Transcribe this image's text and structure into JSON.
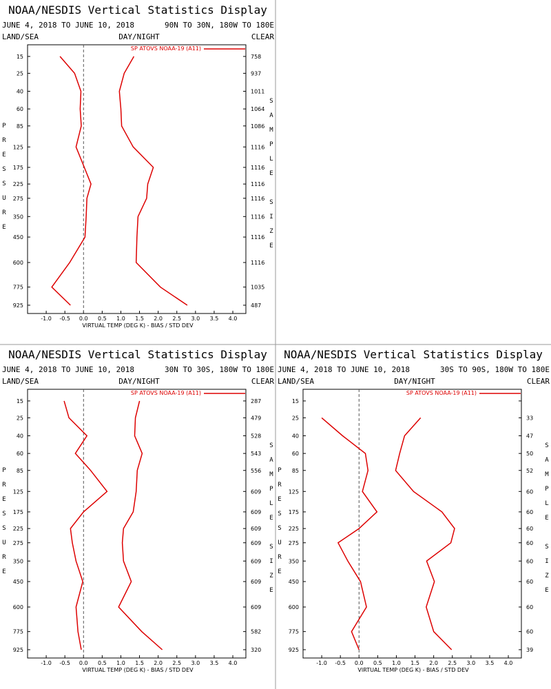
{
  "chart_data": [
    {
      "type": "line",
      "title": "NOAA/NESDIS Vertical Statistics Display",
      "date_range": "JUNE 4, 2018 TO JUNE 10, 2018",
      "region": "90N TO 30N, 180W TO 180E",
      "left_label": "LAND/SEA",
      "center_label": "DAY/NIGHT",
      "right_label": "CLEAR",
      "y_label": "PRESSURE",
      "y2_label": "SAMPLE SIZE",
      "x_label": "VIRTUAL TEMP (DEG K) - BIAS / STD DEV",
      "y": [
        15,
        25,
        40,
        60,
        85,
        125,
        175,
        225,
        275,
        350,
        450,
        600,
        775,
        925
      ],
      "ylim": [
        10,
        1000
      ],
      "yticks": [
        15,
        25,
        40,
        60,
        85,
        125,
        175,
        225,
        275,
        350,
        450,
        600,
        775,
        925
      ],
      "xlim": [
        -1.5,
        4.35
      ],
      "xticks": [
        {
          "value": -1,
          "label": "-1.0"
        },
        -0.5,
        {
          "value": 0,
          "label": "0.0"
        },
        0.5,
        {
          "value": 1,
          "label": "1.0"
        },
        1.5,
        {
          "value": 2,
          "label": "2.0"
        },
        2.5,
        {
          "value": 3,
          "label": "3.0"
        },
        3.5,
        {
          "value": 4,
          "label": "4.0"
        }
      ],
      "sample_size": [
        758,
        937,
        1011,
        1064,
        1086,
        1116,
        1116,
        1116,
        1116,
        1116,
        1116,
        1116,
        1035,
        487
      ],
      "series": [
        {
          "name": "SP ATOVS NOAA-19 (A11)",
          "color": "#dd0000",
          "values": [
            -0.63,
            -0.24,
            -0.07,
            -0.09,
            -0.06,
            -0.2,
            0.02,
            0.2,
            0.09,
            0.07,
            0.04,
            -0.37,
            -0.85,
            -0.35
          ],
          "std_dev": [
            1.35,
            1.09,
            0.96,
            1.0,
            1.02,
            1.33,
            1.87,
            1.72,
            1.69,
            1.46,
            1.43,
            1.41,
            2.06,
            2.78
          ]
        }
      ]
    },
    {
      "type": "line",
      "title": "NOAA/NESDIS Vertical Statistics Display",
      "date_range": "JUNE 4, 2018 TO JUNE 10, 2018",
      "region": "30N TO 30S, 180W TO 180E",
      "left_label": "LAND/SEA",
      "center_label": "DAY/NIGHT",
      "right_label": "CLEAR",
      "y_label": "PRESSURE",
      "y2_label": "SAMPLE SIZE",
      "x_label": "VIRTUAL TEMP (DEG K) - BIAS / STD DEV",
      "y": [
        15,
        25,
        40,
        60,
        85,
        125,
        175,
        225,
        275,
        350,
        450,
        600,
        775,
        925
      ],
      "ylim": [
        10,
        1000
      ],
      "yticks": [
        15,
        25,
        40,
        60,
        85,
        125,
        175,
        225,
        275,
        350,
        450,
        600,
        775,
        925
      ],
      "xlim": [
        -1.5,
        4.35
      ],
      "xticks": [
        {
          "value": -1,
          "label": "-1.0"
        },
        -0.5,
        {
          "value": 0,
          "label": "0.0"
        },
        0.5,
        {
          "value": 1,
          "label": "1.0"
        },
        1.5,
        {
          "value": 2,
          "label": "2.0"
        },
        2.5,
        {
          "value": 3,
          "label": "3.0"
        },
        3.5,
        {
          "value": 4,
          "label": "4.0"
        }
      ],
      "sample_size": [
        287,
        479,
        528,
        543,
        556,
        609,
        609,
        609,
        609,
        609,
        609,
        609,
        582,
        320
      ],
      "series": [
        {
          "name": "SP ATOVS NOAA-19 (A11)",
          "color": "#dd0000",
          "values": [
            -0.52,
            -0.39,
            0.09,
            -0.22,
            0.19,
            0.63,
            0.0,
            -0.35,
            -0.3,
            -0.2,
            -0.02,
            -0.2,
            -0.15,
            -0.06
          ],
          "std_dev": [
            1.5,
            1.39,
            1.37,
            1.57,
            1.44,
            1.41,
            1.33,
            1.07,
            1.04,
            1.07,
            1.28,
            0.94,
            1.56,
            2.11
          ]
        }
      ]
    },
    {
      "type": "line",
      "title": "NOAA/NESDIS Vertical Statistics Display",
      "date_range": "JUNE 4, 2018 TO JUNE 10, 2018",
      "region": "30S TO 90S, 180W TO 180E",
      "left_label": "LAND/SEA",
      "center_label": "DAY/NIGHT",
      "right_label": "CLEAR",
      "y_label": "PRESSURE",
      "y2_label": "SAMPLE SIZE",
      "x_label": "VIRTUAL TEMP (DEG K) - BIAS / STD DEV",
      "y": [
        15,
        25,
        40,
        60,
        85,
        125,
        175,
        225,
        275,
        350,
        450,
        600,
        775,
        925
      ],
      "ylim": [
        10,
        1000
      ],
      "yticks": [
        15,
        25,
        40,
        60,
        85,
        125,
        175,
        225,
        275,
        350,
        450,
        600,
        775,
        925
      ],
      "xlim": [
        -1.5,
        4.35
      ],
      "xticks": [
        {
          "value": -1,
          "label": "-1.0"
        },
        -0.5,
        {
          "value": 0,
          "label": "0.0"
        },
        0.5,
        {
          "value": 1,
          "label": "1.0"
        },
        1.5,
        {
          "value": 2,
          "label": "2.0"
        },
        2.5,
        {
          "value": 3,
          "label": "3.0"
        },
        3.5,
        {
          "value": 4,
          "label": "4.0"
        }
      ],
      "sample_size": [
        null,
        33,
        47,
        50,
        52,
        60,
        60,
        60,
        60,
        60,
        60,
        60,
        60,
        39
      ],
      "series": [
        {
          "name": "SP ATOVS NOAA-19 (A11)",
          "color": "#dd0000",
          "values": [
            null,
            -1.0,
            -0.44,
            0.17,
            0.24,
            0.09,
            0.48,
            0.0,
            -0.56,
            -0.3,
            0.04,
            0.2,
            -0.2,
            0.0
          ],
          "std_dev": [
            null,
            1.65,
            1.22,
            1.09,
            0.98,
            1.46,
            2.22,
            2.56,
            2.46,
            1.81,
            2.02,
            1.8,
            2.0,
            2.48
          ]
        }
      ]
    }
  ]
}
